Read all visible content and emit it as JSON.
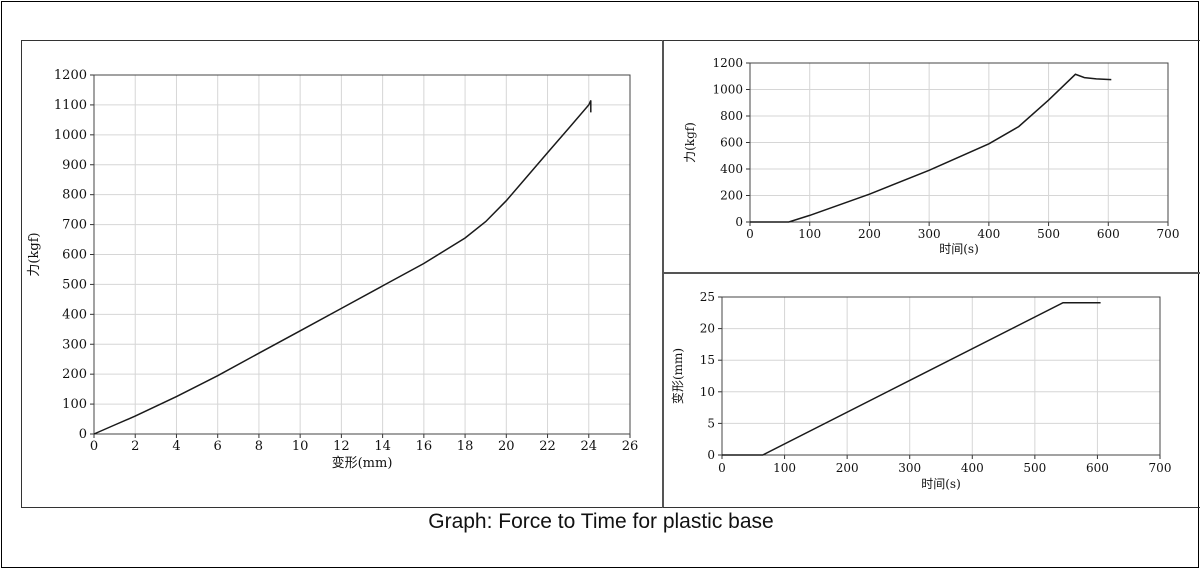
{
  "caption": "Graph: Force to Time for plastic base",
  "chart_data": [
    {
      "type": "line",
      "xlabel": "变形(mm)",
      "ylabel": "力(kgf)",
      "xlim": [
        0,
        26
      ],
      "ylim": [
        0,
        1200
      ],
      "xticks": [
        0,
        2,
        4,
        6,
        8,
        10,
        12,
        14,
        16,
        18,
        20,
        22,
        24,
        26
      ],
      "yticks": [
        0,
        100,
        200,
        300,
        400,
        500,
        600,
        700,
        800,
        900,
        1000,
        1100,
        1200
      ],
      "grid": true,
      "series": [
        {
          "x": [
            0,
            0.5,
            1,
            2,
            4,
            6,
            8,
            10,
            12,
            14,
            16,
            18,
            19,
            20,
            21,
            22,
            23,
            24,
            24.1,
            24.1
          ],
          "y": [
            0,
            15,
            30,
            60,
            125,
            195,
            270,
            345,
            420,
            495,
            570,
            655,
            710,
            780,
            860,
            940,
            1020,
            1100,
            1115,
            1075
          ]
        }
      ]
    },
    {
      "type": "line",
      "xlabel": "时间(s)",
      "ylabel": "力(kgf)",
      "xlim": [
        0,
        700
      ],
      "ylim": [
        0,
        1200
      ],
      "xticks": [
        0,
        100,
        200,
        300,
        400,
        500,
        600,
        700
      ],
      "yticks": [
        0,
        200,
        400,
        600,
        800,
        1000,
        1200
      ],
      "grid": true,
      "series": [
        {
          "x": [
            0,
            65,
            100,
            200,
            300,
            400,
            450,
            500,
            545,
            560,
            580,
            605
          ],
          "y": [
            0,
            0,
            50,
            210,
            390,
            590,
            720,
            920,
            1115,
            1090,
            1080,
            1075
          ]
        }
      ]
    },
    {
      "type": "line",
      "xlabel": "时间(s)",
      "ylabel": "变形(mm)",
      "xlim": [
        0,
        700
      ],
      "ylim": [
        0,
        25
      ],
      "xticks": [
        0,
        100,
        200,
        300,
        400,
        500,
        600,
        700
      ],
      "yticks": [
        0,
        5,
        10,
        15,
        20,
        25
      ],
      "grid": true,
      "series": [
        {
          "x": [
            0,
            65,
            545,
            605
          ],
          "y": [
            0,
            0,
            24.1,
            24.1
          ]
        }
      ]
    }
  ]
}
